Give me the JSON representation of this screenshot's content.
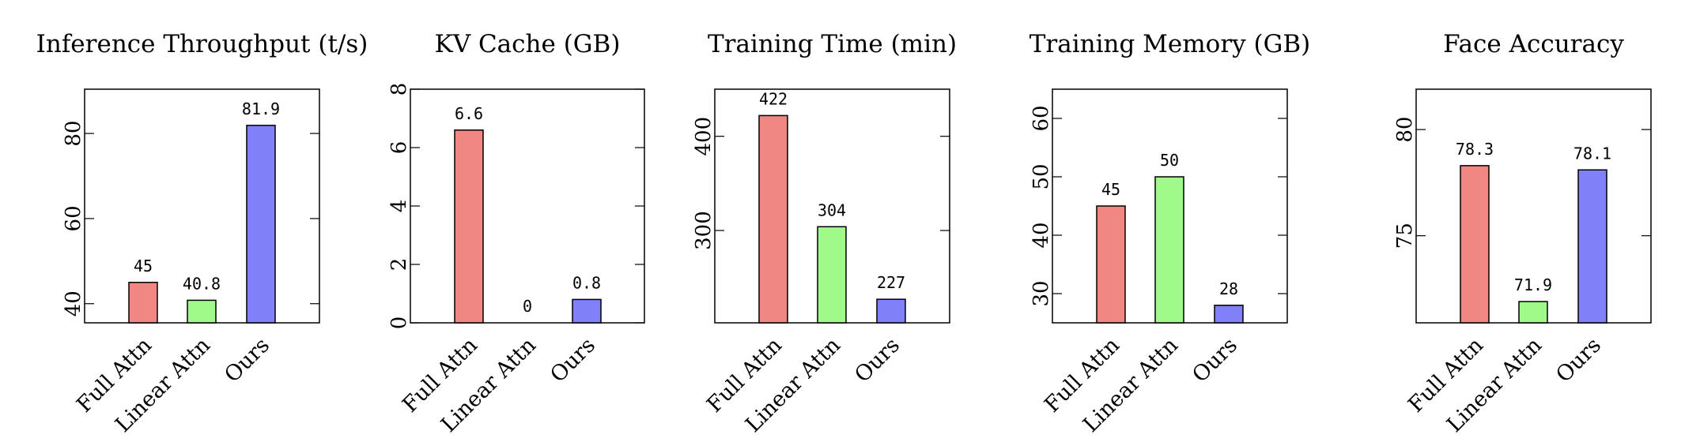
{
  "colors": {
    "Full Attn": "#f08783",
    "Linear Attn": "#a0fa8a",
    "Ours": "#8080f8"
  },
  "chart_data": [
    {
      "type": "bar",
      "title": "Inference Throughput (t/s)",
      "categories": [
        "Full Attn",
        "Linear Attn",
        "Ours"
      ],
      "values": [
        45,
        40.8,
        81.9
      ],
      "value_labels": [
        "45",
        "40.8",
        "81.9"
      ],
      "ylim": [
        35.5,
        90.4
      ],
      "yticks": [
        40,
        60,
        80
      ],
      "ytick_labels": [
        "40",
        "60",
        "80"
      ],
      "grid": false
    },
    {
      "type": "bar",
      "title": "KV Cache (GB)",
      "categories": [
        "Full Attn",
        "Linear Attn",
        "Ours"
      ],
      "values": [
        6.6,
        0,
        0.8
      ],
      "value_labels": [
        "6.6",
        "0",
        "0.8"
      ],
      "ylim": [
        0,
        8
      ],
      "yticks": [
        0,
        2,
        4,
        6,
        8
      ],
      "ytick_labels": [
        "0",
        "2",
        "4",
        "6",
        "8"
      ],
      "grid": false
    },
    {
      "type": "bar",
      "title": "Training Time (min)",
      "categories": [
        "Full Attn",
        "Linear Attn",
        "Ours"
      ],
      "values": [
        422,
        304,
        227
      ],
      "value_labels": [
        "422",
        "304",
        "227"
      ],
      "ylim": [
        202,
        450
      ],
      "yticks": [
        300,
        400
      ],
      "ytick_labels": [
        "300",
        "400"
      ],
      "grid": false
    },
    {
      "type": "bar",
      "title": "Training Memory (GB)",
      "categories": [
        "Full Attn",
        "Linear Attn",
        "Ours"
      ],
      "values": [
        45,
        50,
        28
      ],
      "value_labels": [
        "45",
        "50",
        "28"
      ],
      "ylim": [
        25,
        65
      ],
      "yticks": [
        30,
        40,
        50,
        60
      ],
      "ytick_labels": [
        "30",
        "40",
        "50",
        "60"
      ],
      "grid": false
    },
    {
      "type": "bar",
      "title": "Face Accuracy",
      "categories": [
        "Full Attn",
        "Linear Attn",
        "Ours"
      ],
      "values": [
        78.3,
        71.9,
        78.1
      ],
      "value_labels": [
        "78.3",
        "71.9",
        "78.1"
      ],
      "ylim": [
        70.9,
        81.9
      ],
      "yticks": [
        75,
        80
      ],
      "ytick_labels": [
        "75",
        "80"
      ],
      "grid": false
    }
  ]
}
